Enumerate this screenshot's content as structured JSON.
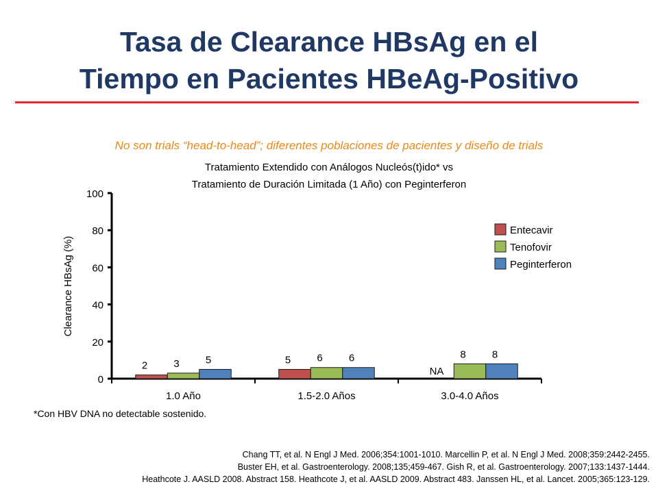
{
  "title_line1": "Tasa de Clearance HBsAg en el",
  "title_line2": "Tiempo en Pacientes HBeAg-Positivo",
  "note": "No son trials “head-to-head”; diferentes poblaciones de pacientes y diseño de trials",
  "chart_data": {
    "type": "bar",
    "subtitle_line1": "Tratamiento Extendido con Análogos Nucleós(t)ido* vs",
    "subtitle_line2": "Tratamiento de Duración Limitada (1 Año) con Peginterferon",
    "ylabel": "Clearance HBsAg (%)",
    "ylim": [
      0,
      100
    ],
    "yticks": [
      0,
      20,
      40,
      60,
      80,
      100
    ],
    "categories": [
      "1.0 Año",
      "1.5-2.0 Años",
      "3.0-4.0 Años"
    ],
    "series": [
      {
        "name": "Entecavir",
        "color": "#c0504d",
        "values": [
          2,
          5,
          null
        ],
        "labels": [
          "2",
          "5",
          "NA"
        ]
      },
      {
        "name": "Tenofovir",
        "color": "#9bbb59",
        "values": [
          3,
          6,
          8
        ],
        "labels": [
          "3",
          "6",
          "8"
        ]
      },
      {
        "name": "Peginterferon",
        "color": "#4f81bd",
        "values": [
          5,
          6,
          8
        ],
        "labels": [
          "5",
          "6",
          "8"
        ]
      }
    ],
    "legend_position": "right"
  },
  "footnote": "*Con HBV DNA no detectable sostenido.",
  "references": [
    "Chang TT, et al. N Engl J Med. 2006;354:1001-1010.  Marcellin P, et al. N Engl J Med. 2008;359:2442-2455.",
    "Buster EH, et al. Gastroenterology. 2008;135;459-467.  Gish R, et al. Gastroenterology. 2007;133:1437-1444.",
    "Heathcote J. AASLD 2008. Abstract 158. Heathcote J, et al. AASLD 2009. Abstract 483. Janssen HL, et al. Lancet. 2005;365:123-129."
  ]
}
